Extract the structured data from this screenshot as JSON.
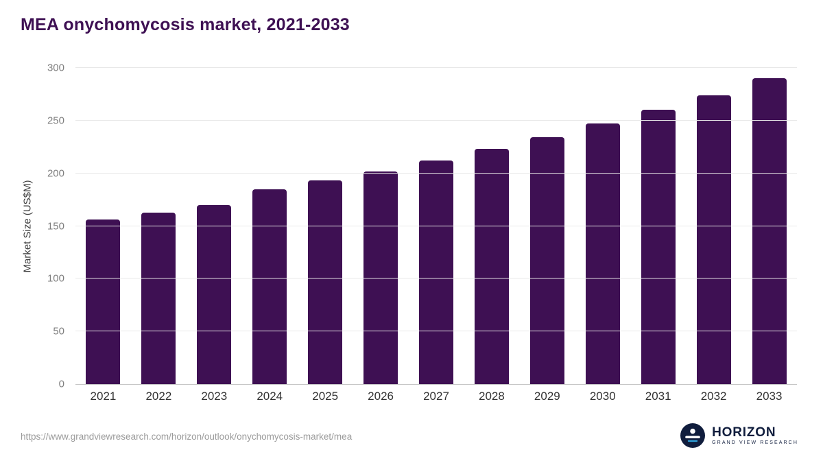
{
  "title": "MEA onychomycosis market, 2021-2033",
  "chart_data": {
    "type": "bar",
    "title": "MEA onychomycosis market, 2021-2033",
    "categories": [
      "2021",
      "2022",
      "2023",
      "2024",
      "2025",
      "2026",
      "2027",
      "2028",
      "2029",
      "2030",
      "2031",
      "2032",
      "2033"
    ],
    "values": [
      156,
      163,
      170,
      185,
      193,
      202,
      212,
      223,
      234,
      247,
      260,
      274,
      290
    ],
    "xlabel": "",
    "ylabel": "Market Size (US$M)",
    "ylim": [
      0,
      300
    ],
    "yticks": [
      0,
      50,
      100,
      150,
      200,
      250,
      300
    ],
    "grid": "horizontal",
    "legend": "none",
    "bar_color": "#3e1053"
  },
  "footer": {
    "source_url": "https://www.grandviewresearch.com/horizon/outlook/onychomycosis-market/mea",
    "logo_name": "HORIZON",
    "logo_subtext": "GRAND VIEW RESEARCH"
  },
  "colors": {
    "title": "#3e1053",
    "bar": "#3e1053",
    "gridline": "#e8e8e8",
    "axis": "#c7c7c7",
    "tick_label": "#7f7f7f",
    "x_label": "#333333",
    "url_text": "#9b9b9b",
    "logo_navy": "#101d3d",
    "logo_accent": "#2e9fd8"
  }
}
